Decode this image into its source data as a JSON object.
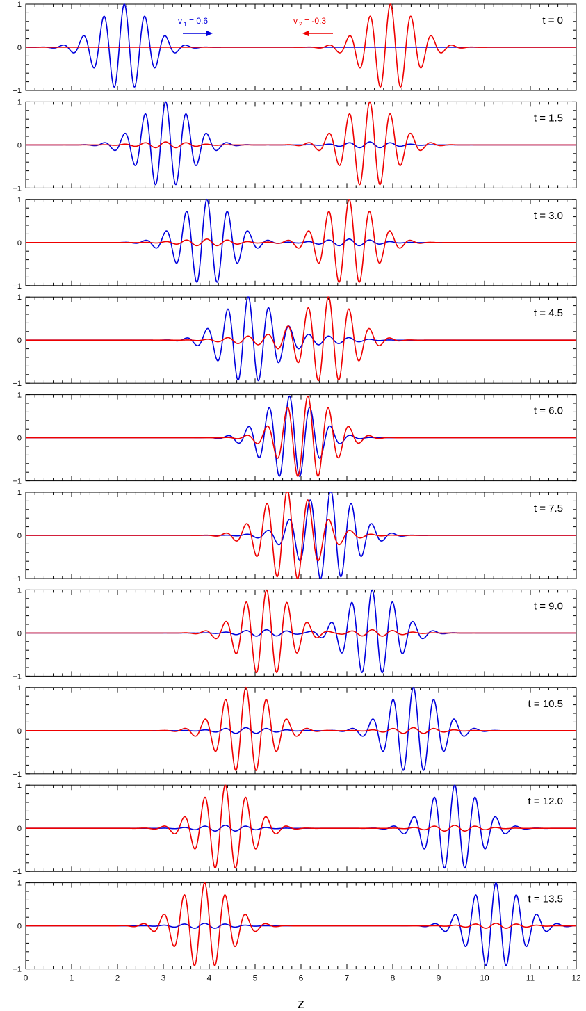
{
  "chart_data": {
    "type": "line",
    "xlabel": "z",
    "xlim": [
      0,
      12
    ],
    "ylim": [
      -1,
      1
    ],
    "x_ticks": [
      "0",
      "1",
      "2",
      "3",
      "4",
      "5",
      "6",
      "7",
      "8",
      "9",
      "10",
      "11",
      "12"
    ],
    "y_ticks": [
      "1",
      "0",
      "−1"
    ],
    "grid": false,
    "colors": {
      "wave1": "#0000dd",
      "wave2": "#ee0000",
      "axis": "#000000"
    },
    "annotations": {
      "v1_label": "v",
      "v1_sub": "1",
      "v1_value": "= 0.6",
      "v2_label": "v",
      "v2_sub": "2",
      "v2_value": "= -0.3"
    },
    "panels": [
      {
        "label": "t = 0",
        "t": 0,
        "blue_center": 2.15,
        "red_center": 7.95,
        "blue_scatter": 0.0,
        "red_scatter": 0.0,
        "overlap": 0.0
      },
      {
        "label": "t = 1.5",
        "t": 1.5,
        "blue_center": 3.05,
        "red_center": 7.5,
        "blue_scatter": 0.07,
        "red_scatter": 0.07,
        "overlap": 0.0
      },
      {
        "label": "t = 3.0",
        "t": 3.0,
        "blue_center": 3.95,
        "red_center": 7.05,
        "blue_scatter": 0.08,
        "red_scatter": 0.08,
        "overlap": 0.0
      },
      {
        "label": "t = 4.5",
        "t": 4.5,
        "blue_center": 4.85,
        "red_center": 6.6,
        "blue_scatter": 0.08,
        "red_scatter": 0.08,
        "overlap": 0.3
      },
      {
        "label": "t = 6.0",
        "t": 6.0,
        "blue_center": 5.75,
        "red_center": 6.15,
        "blue_scatter": 0.07,
        "red_scatter": 0.07,
        "overlap": 0.7
      },
      {
        "label": "t = 7.5",
        "t": 7.5,
        "blue_center": 6.65,
        "red_center": 5.7,
        "blue_scatter": 0.08,
        "red_scatter": 0.08,
        "overlap": 0.6
      },
      {
        "label": "t = 9.0",
        "t": 9.0,
        "blue_center": 7.55,
        "red_center": 5.25,
        "blue_scatter": 0.08,
        "red_scatter": 0.08,
        "overlap": 0.25
      },
      {
        "label": "t = 10.5",
        "t": 10.5,
        "blue_center": 8.45,
        "red_center": 4.8,
        "blue_scatter": 0.07,
        "red_scatter": 0.07,
        "overlap": 0.0
      },
      {
        "label": "t = 12.0",
        "t": 12.0,
        "blue_center": 9.35,
        "red_center": 4.35,
        "blue_scatter": 0.07,
        "red_scatter": 0.07,
        "overlap": 0.0
      },
      {
        "label": "t = 13.5",
        "t": 13.5,
        "blue_center": 10.25,
        "red_center": 3.9,
        "blue_scatter": 0.06,
        "red_scatter": 0.06,
        "overlap": 0.0
      }
    ],
    "wave_packet": {
      "amplitude": 1.0,
      "wavenumber": 14.0,
      "envelope_width": 0.55
    }
  }
}
